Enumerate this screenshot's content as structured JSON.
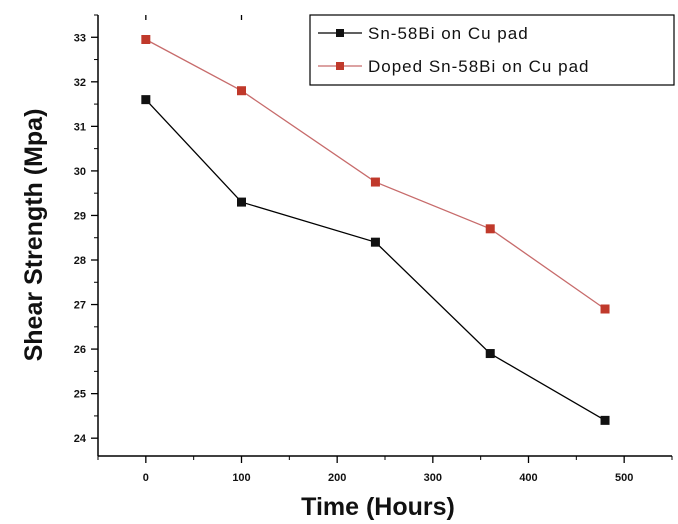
{
  "chart_data": {
    "type": "line",
    "title": "",
    "xlabel": "Time (Hours)",
    "ylabel": "Shear Strength (Mpa)",
    "xlim": [
      -50,
      550
    ],
    "ylim": [
      23.6,
      33.5
    ],
    "x_ticks": [
      0,
      100,
      200,
      300,
      400,
      500
    ],
    "y_ticks": [
      24,
      25,
      26,
      27,
      28,
      29,
      30,
      31,
      32,
      33
    ],
    "grid": false,
    "legend_position": "top-right",
    "series": [
      {
        "name": "Sn-58Bi on Cu pad",
        "color": "#000000",
        "marker_color": "#111111",
        "x": [
          0,
          100,
          240,
          360,
          480
        ],
        "y": [
          31.6,
          29.3,
          28.4,
          25.9,
          24.4
        ]
      },
      {
        "name": "Doped Sn-58Bi on Cu pad",
        "color": "#c76b6b",
        "marker_color": "#c0392b",
        "x": [
          0,
          100,
          240,
          360,
          480
        ],
        "y": [
          32.95,
          31.8,
          29.75,
          28.7,
          26.9
        ]
      }
    ]
  }
}
